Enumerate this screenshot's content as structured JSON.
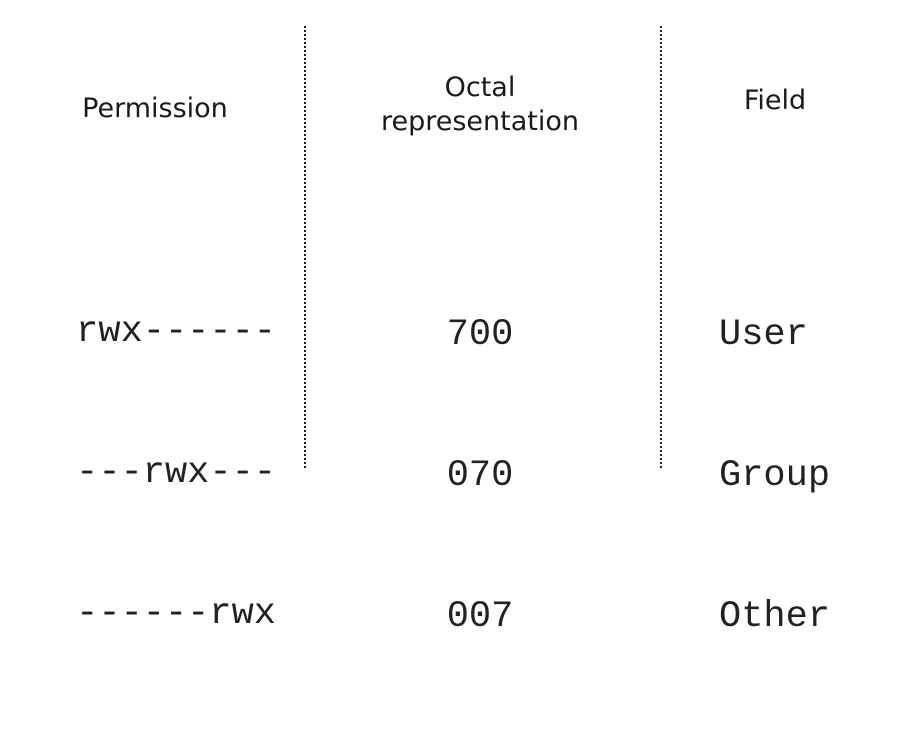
{
  "headers": {
    "permission": "Permission",
    "octal_line1": "Octal",
    "octal_line2": "representation",
    "field": "Field"
  },
  "rows": [
    {
      "permission": "rwx------",
      "octal": "700",
      "field": "User"
    },
    {
      "permission": "---rwx---",
      "octal": "070",
      "field": "Group"
    },
    {
      "permission": "------rwx",
      "octal": "007",
      "field": "Other"
    }
  ],
  "colors": {
    "text": "#222222",
    "background": "#ffffff",
    "divider": "#222222"
  }
}
